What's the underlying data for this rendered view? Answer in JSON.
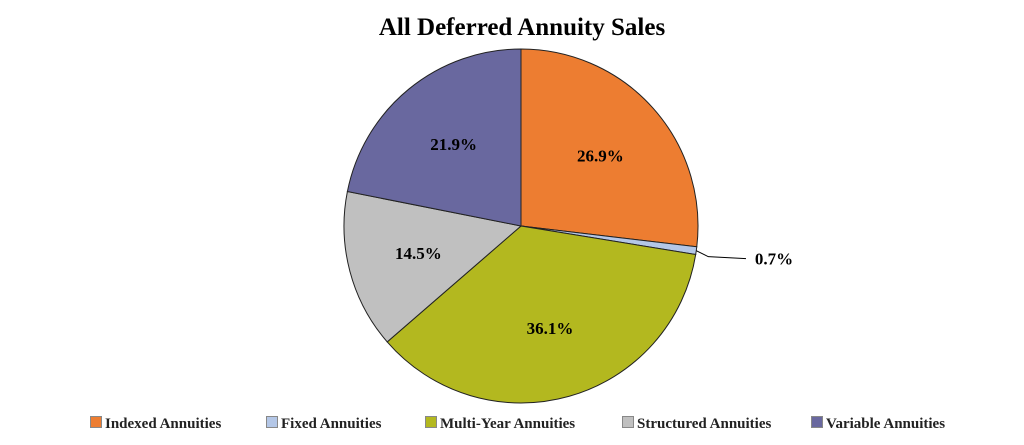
{
  "chart_data": {
    "type": "pie",
    "title": "All Deferred Annuity Sales",
    "categories": [
      "Indexed Annuities",
      "Fixed Annuities",
      "Multi-Year Annuities",
      "Structured Annuities",
      "Variable Annuities"
    ],
    "values": [
      26.9,
      0.7,
      36.1,
      14.5,
      21.9
    ],
    "labels": [
      "26.9%",
      "0.7%",
      "36.1%",
      "14.5%",
      "21.9%"
    ],
    "colors": [
      "#ED7D31",
      "#B4C7E7",
      "#B3B81F",
      "#C0C0C0",
      "#69689F"
    ],
    "legend": "bottom"
  }
}
